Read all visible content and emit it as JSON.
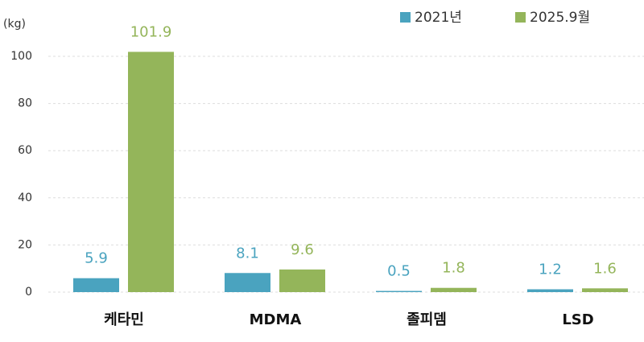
{
  "chart_data": {
    "type": "bar",
    "y_axis_label": "(kg)",
    "categories": [
      "케타민",
      "MDMA",
      "졸피뎀",
      "LSD"
    ],
    "series": [
      {
        "name": "2021년",
        "color": "#4aa3bf",
        "values": [
          5.9,
          8.1,
          0.5,
          1.2
        ]
      },
      {
        "name": "2025.9월",
        "color": "#94b55a",
        "values": [
          101.9,
          9.6,
          1.8,
          1.6
        ]
      }
    ],
    "ylim": [
      0,
      100
    ],
    "yticks": [
      0,
      20,
      40,
      60,
      80,
      100
    ],
    "grid": true
  }
}
